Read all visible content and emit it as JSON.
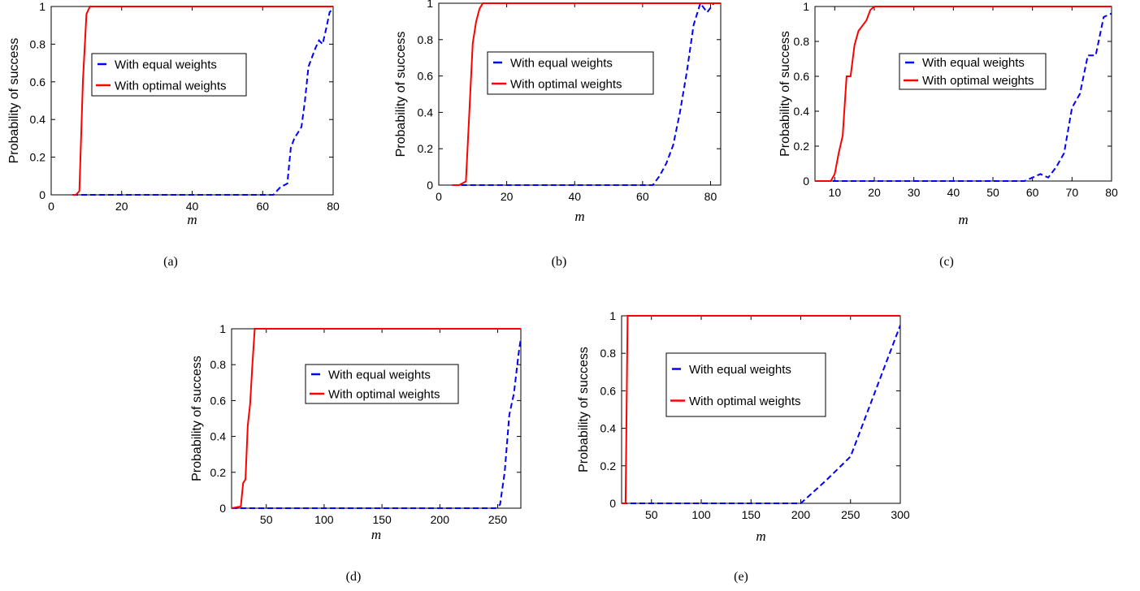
{
  "styles": {
    "equal_color": "#0000ff",
    "optimal_color": "#ff0000",
    "axes_color": "#000000",
    "background": "#ffffff"
  },
  "legend_labels": {
    "equal": "With equal weights",
    "optimal": "With optimal weights"
  },
  "chart_data": [
    {
      "panel": "(a)",
      "type": "line",
      "xlabel": "m",
      "ylabel": "Probability of success",
      "xlim": [
        0,
        80
      ],
      "ylim": [
        0,
        1
      ],
      "xticks": [
        0,
        20,
        40,
        60,
        80
      ],
      "yticks": [
        0,
        0.2,
        0.4,
        0.6,
        0.8,
        1
      ],
      "legend_position": "upper-center",
      "grid": false,
      "series": [
        {
          "name": "With equal weights",
          "style": "dashed",
          "color": "#0000ff",
          "x": [
            6,
            20,
            40,
            60,
            63,
            65,
            67,
            68,
            69,
            71,
            72,
            73,
            75,
            76,
            77,
            78,
            79,
            80
          ],
          "y": [
            0,
            0,
            0,
            0,
            0,
            0.04,
            0.06,
            0.25,
            0.3,
            0.36,
            0.5,
            0.68,
            0.78,
            0.82,
            0.8,
            0.88,
            0.97,
            0.99
          ]
        },
        {
          "name": "With optimal weights",
          "style": "solid",
          "color": "#ff0000",
          "x": [
            6,
            7,
            8,
            9,
            10,
            11,
            12,
            20,
            40,
            60,
            80
          ],
          "y": [
            0,
            0,
            0.02,
            0.6,
            0.96,
            1,
            1,
            1,
            1,
            1,
            1
          ]
        }
      ]
    },
    {
      "panel": "(b)",
      "type": "line",
      "xlabel": "m",
      "ylabel": "Probability of success",
      "xlim": [
        0,
        83
      ],
      "ylim": [
        0,
        1
      ],
      "xticks": [
        0,
        20,
        40,
        60,
        80
      ],
      "yticks": [
        0,
        0.2,
        0.4,
        0.6,
        0.8,
        1
      ],
      "legend_position": "upper-center",
      "grid": false,
      "series": [
        {
          "name": "With equal weights",
          "style": "dashed",
          "color": "#0000ff",
          "x": [
            4,
            20,
            40,
            60,
            63,
            65,
            67,
            69,
            71,
            73,
            75,
            77,
            79,
            81,
            83
          ],
          "y": [
            0,
            0,
            0,
            0,
            0,
            0.05,
            0.12,
            0.22,
            0.4,
            0.62,
            0.88,
            1,
            0.95,
            1,
            1
          ]
        },
        {
          "name": "With optimal weights",
          "style": "solid",
          "color": "#ff0000",
          "x": [
            4,
            6,
            8,
            9,
            10,
            11,
            12,
            13,
            14,
            20,
            40,
            60,
            83
          ],
          "y": [
            0,
            0,
            0.02,
            0.4,
            0.78,
            0.9,
            0.97,
            1,
            1,
            1,
            1,
            1,
            1
          ]
        }
      ]
    },
    {
      "panel": "(c)",
      "type": "line",
      "xlabel": "m",
      "ylabel": "Probability of success",
      "xlim": [
        5,
        80
      ],
      "ylim": [
        0,
        1
      ],
      "xticks": [
        10,
        20,
        30,
        40,
        50,
        60,
        70,
        80
      ],
      "yticks": [
        0,
        0.2,
        0.4,
        0.6,
        0.8,
        1
      ],
      "legend_position": "upper-center",
      "grid": false,
      "series": [
        {
          "name": "With equal weights",
          "style": "dashed",
          "color": "#0000ff",
          "x": [
            5,
            20,
            40,
            58,
            60,
            62,
            64,
            66,
            68,
            70,
            71,
            72,
            74,
            76,
            78,
            80
          ],
          "y": [
            0,
            0,
            0,
            0,
            0.02,
            0.04,
            0.02,
            0.08,
            0.16,
            0.42,
            0.46,
            0.5,
            0.72,
            0.72,
            0.94,
            0.96
          ]
        },
        {
          "name": "With optimal weights",
          "style": "solid",
          "color": "#ff0000",
          "x": [
            5,
            9,
            10,
            11,
            12,
            13,
            14,
            15,
            16,
            18,
            19,
            20,
            40,
            60,
            80
          ],
          "y": [
            0,
            0,
            0.04,
            0.16,
            0.26,
            0.6,
            0.6,
            0.78,
            0.86,
            0.92,
            0.98,
            1,
            1,
            1,
            1
          ]
        }
      ]
    },
    {
      "panel": "(d)",
      "type": "line",
      "xlabel": "m",
      "ylabel": "Probability of success",
      "xlim": [
        20,
        270
      ],
      "ylim": [
        0,
        1
      ],
      "xticks": [
        50,
        100,
        150,
        200,
        250
      ],
      "yticks": [
        0,
        0.2,
        0.4,
        0.6,
        0.8,
        1
      ],
      "legend_position": "upper-center",
      "grid": false,
      "series": [
        {
          "name": "With equal weights",
          "style": "dashed",
          "color": "#0000ff",
          "x": [
            20,
            100,
            200,
            248,
            252,
            256,
            260,
            264,
            268,
            270
          ],
          "y": [
            0,
            0,
            0,
            0,
            0.02,
            0.2,
            0.52,
            0.64,
            0.86,
            0.95
          ]
        },
        {
          "name": "With optimal weights",
          "style": "solid",
          "color": "#ff0000",
          "x": [
            20,
            28,
            30,
            32,
            34,
            36,
            38,
            40,
            42,
            60,
            150,
            270
          ],
          "y": [
            0,
            0.01,
            0.14,
            0.16,
            0.46,
            0.58,
            0.8,
            1,
            1,
            1,
            1,
            1
          ]
        }
      ]
    },
    {
      "panel": "(e)",
      "type": "line",
      "xlabel": "m",
      "ylabel": "Probability of success",
      "xlim": [
        20,
        300
      ],
      "ylim": [
        0,
        1
      ],
      "xticks": [
        50,
        100,
        150,
        200,
        250,
        300
      ],
      "yticks": [
        0,
        0.2,
        0.4,
        0.6,
        0.8,
        1
      ],
      "legend_position": "upper-center",
      "grid": false,
      "series": [
        {
          "name": "With equal weights",
          "style": "dashed",
          "color": "#0000ff",
          "x": [
            20,
            100,
            200,
            225,
            250,
            275,
            300
          ],
          "y": [
            0,
            0,
            0,
            0.12,
            0.25,
            0.6,
            0.95
          ]
        },
        {
          "name": "With optimal weights",
          "style": "solid",
          "color": "#ff0000",
          "x": [
            20,
            24,
            26,
            28,
            100,
            200,
            300
          ],
          "y": [
            0,
            0,
            1,
            1,
            1,
            1,
            1
          ]
        }
      ]
    }
  ]
}
